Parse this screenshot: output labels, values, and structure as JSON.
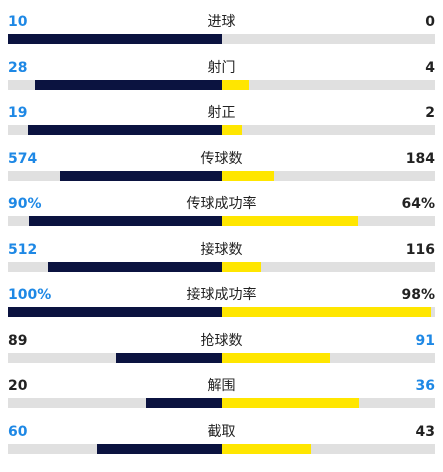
{
  "stats": [
    {
      "label": "进球",
      "left": "10",
      "right": "0",
      "left_fraction": 1.0,
      "right_fraction": 0.0,
      "left_highlight": true,
      "right_highlight": false
    },
    {
      "label": "射门",
      "left": "28",
      "right": "4",
      "left_fraction": 0.875,
      "right_fraction": 0.125,
      "left_highlight": true,
      "right_highlight": false
    },
    {
      "label": "射正",
      "left": "19",
      "right": "2",
      "left_fraction": 0.905,
      "right_fraction": 0.095,
      "left_highlight": true,
      "right_highlight": false
    },
    {
      "label": "传球数",
      "left": "574",
      "right": "184",
      "left_fraction": 0.757,
      "right_fraction": 0.243,
      "left_highlight": true,
      "right_highlight": false
    },
    {
      "label": "传球成功率",
      "left": "90%",
      "right": "64%",
      "left_fraction": 0.9,
      "right_fraction": 0.64,
      "left_highlight": true,
      "right_highlight": false
    },
    {
      "label": "接球数",
      "left": "512",
      "right": "116",
      "left_fraction": 0.815,
      "right_fraction": 0.185,
      "left_highlight": true,
      "right_highlight": false
    },
    {
      "label": "接球成功率",
      "left": "100%",
      "right": "98%",
      "left_fraction": 1.0,
      "right_fraction": 0.98,
      "left_highlight": true,
      "right_highlight": false
    },
    {
      "label": "抢球数",
      "left": "89",
      "right": "91",
      "left_fraction": 0.494,
      "right_fraction": 0.506,
      "left_highlight": false,
      "right_highlight": true
    },
    {
      "label": "解围",
      "left": "20",
      "right": "36",
      "left_fraction": 0.357,
      "right_fraction": 0.643,
      "left_highlight": false,
      "right_highlight": true
    },
    {
      "label": "截取",
      "left": "60",
      "right": "43",
      "left_fraction": 0.583,
      "right_fraction": 0.417,
      "left_highlight": true,
      "right_highlight": false
    }
  ],
  "colors": {
    "left_bar": "#0b1340",
    "right_bar": "#ffe600",
    "track": "#e0e0e0",
    "highlight_text": "#1e88e5",
    "normal_text": "#222222"
  }
}
